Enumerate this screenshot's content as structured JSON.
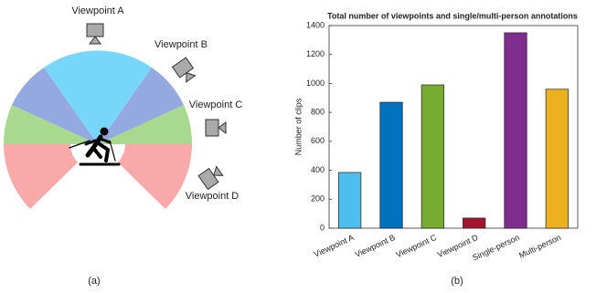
{
  "diagram": {
    "labels": [
      "Viewpoint A",
      "Viewpoint B",
      "Viewpoint C",
      "Viewpoint D"
    ],
    "panel_label": "(a)"
  },
  "chart_data": {
    "type": "bar",
    "title": "Total number of viewpoints and single/multi-person annotations",
    "y_label": "Number of clips",
    "categories": [
      "Viewpoint A",
      "Viewpoint B",
      "Viewpoint C",
      "Viewpoint D",
      "Single-person",
      "Multi-person"
    ],
    "values": [
      385,
      870,
      990,
      70,
      1350,
      960
    ],
    "colors": [
      "#4dbeee",
      "#0072bd",
      "#77ac30",
      "#a2142f",
      "#7e2f8e",
      "#edb120"
    ],
    "ylim": [
      0,
      1400
    ],
    "yticks": [
      0,
      200,
      400,
      600,
      800,
      1000,
      1200,
      1400
    ],
    "panel_label": "(b)"
  }
}
